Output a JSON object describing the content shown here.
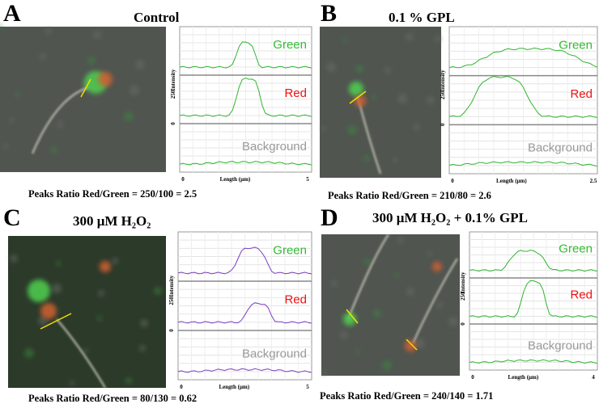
{
  "panels": [
    {
      "letter": "A",
      "title": "Control",
      "caption": "Peaks Ratio Red/Green = 250/100 = 2.5",
      "plot": {
        "row_labels": [
          "Green",
          "Red",
          "Background"
        ],
        "y_label": "Intensity",
        "y_ticks": [
          250,
          0
        ],
        "x_label": "Length (μm)",
        "x_ticks": [
          0,
          5
        ]
      }
    },
    {
      "letter": "B",
      "title": "0.1 % GPL",
      "caption": "Peaks Ratio Red/Green = 210/80 = 2.6",
      "plot": {
        "row_labels": [
          "Green",
          "Red",
          "Background"
        ],
        "y_label": "Intensity",
        "y_ticks": [
          250,
          0
        ],
        "x_label": "Length (μm)",
        "x_ticks": [
          0,
          2.5
        ]
      }
    },
    {
      "letter": "C",
      "title": "300 μM H₂O₂",
      "caption": "Peaks Ratio Red/Green = 80/130 = 0.62",
      "plot": {
        "row_labels": [
          "Green",
          "Red",
          "Background"
        ],
        "y_label": "Intensity",
        "y_ticks": [
          250,
          0
        ],
        "x_label": "Length (μm)",
        "x_ticks": [
          0,
          5
        ]
      }
    },
    {
      "letter": "D",
      "title": "300 μM H₂O₂ + 0.1% GPL",
      "caption": "Peaks Ratio Red/Green = 240/140 = 1.71",
      "plot": {
        "row_labels": [
          "Green",
          "Red",
          "Background"
        ],
        "y_label": "Intensity",
        "y_ticks": [
          250,
          0
        ],
        "x_label": "Length (μm)",
        "x_ticks": [
          0,
          4
        ]
      }
    }
  ]
}
